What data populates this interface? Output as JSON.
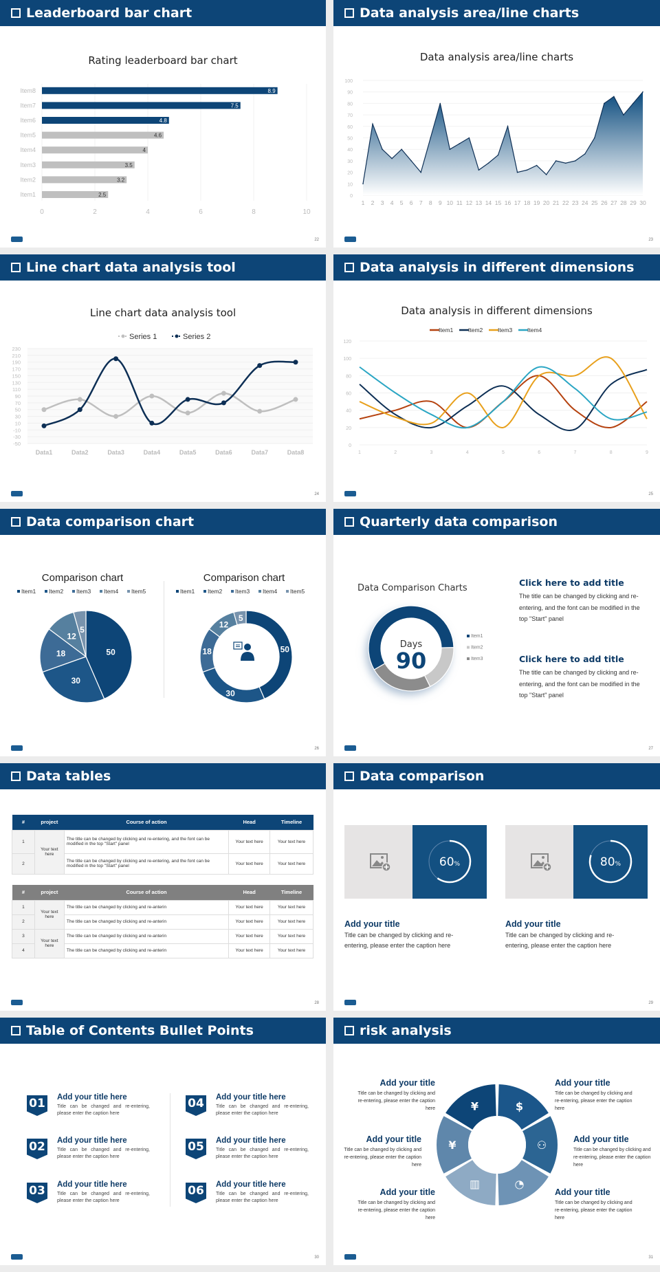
{
  "colors": {
    "header": "#0d4577",
    "dark_blue": "#0d4577",
    "gray_bar": "#bfbfbf"
  },
  "slides": {
    "s1": {
      "header": "Leaderboard bar chart",
      "page": "22"
    },
    "s2": {
      "header": "Data analysis area/line charts",
      "page": "23"
    },
    "s3": {
      "header": "Line chart data analysis tool",
      "page": "24"
    },
    "s4": {
      "header": "Data analysis in different dimensions",
      "page": "25"
    },
    "s5": {
      "header": "Data comparison chart",
      "page": "26"
    },
    "s6": {
      "header": "Quarterly data comparison",
      "page": "27",
      "blocks": [
        {
          "title": "Click here to add title",
          "text": "The title can be changed by clicking and re-entering, and the font can be modified in the top \"Start\" panel"
        },
        {
          "title": "Click here to add title",
          "text": "The title can be changed by clicking and re-entering, and the font can be modified in the top \"Start\" panel"
        }
      ]
    },
    "s7": {
      "header": "Data tables",
      "page": "28",
      "columns": [
        "#",
        "project",
        "Course of action",
        "Head",
        "Timeline"
      ],
      "table1": {
        "project": "Your text here",
        "rows": [
          {
            "num": "1",
            "course": "The title can be changed by clicking and re-entering, and the font can be modified in the top \"Start\" panel",
            "head": "Your text here",
            "timeline": "Your text here"
          },
          {
            "num": "2",
            "course": "The title can be changed by clicking and re-entering, and the font can be modified in the top \"Start\" panel",
            "head": "Your text here",
            "timeline": "Your text here"
          }
        ]
      },
      "table2": {
        "projects": [
          "Your text here",
          "Your text here"
        ],
        "rows": [
          {
            "num": "1",
            "course": "The title can be changed by clicking and re-anterin",
            "head": "Your text here",
            "timeline": "Your text here"
          },
          {
            "num": "2",
            "course": "The title can be changed by clicking and re-anterin",
            "head": "Your text here",
            "timeline": "Your text here"
          },
          {
            "num": "3",
            "course": "The title can be changed by clicking and re-anterin",
            "head": "Your text here",
            "timeline": "Your text here"
          },
          {
            "num": "4",
            "course": "The title can be changed by clicking and re-anterin",
            "head": "Your text here",
            "timeline": "Your text here"
          }
        ]
      }
    },
    "s8": {
      "header": "Data comparison",
      "page": "29",
      "cards": [
        {
          "percent": 60,
          "value": "60",
          "unit": "%",
          "title": "Add your title",
          "text": "Title can be changed by clicking and re-entering, please enter the caption here",
          "icon": "image-add-icon"
        },
        {
          "percent": 80,
          "value": "80",
          "unit": "%",
          "title": "Add your title",
          "text": "Title can be changed by clicking and re-entering, please enter the caption here",
          "icon": "image-add-icon"
        }
      ]
    },
    "s9": {
      "header": "Table of Contents Bullet Points",
      "page": "30",
      "items": [
        {
          "num": "01",
          "title": "Add your title here",
          "text": "Title can be changed and re-entering, please enter the caption here"
        },
        {
          "num": "02",
          "title": "Add your title here",
          "text": "Title can be changed and re-entering, please enter the caption here"
        },
        {
          "num": "03",
          "title": "Add your title here",
          "text": "Title can be changed and re-entering, please enter the caption here"
        },
        {
          "num": "04",
          "title": "Add your title here",
          "text": "Title can be changed and re-entering, please enter the caption here"
        },
        {
          "num": "05",
          "title": "Add your title here",
          "text": "Title can be changed and re-entering, please enter the caption here"
        },
        {
          "num": "06",
          "title": "Add your title here",
          "text": "Title can be changed and re-entering, please enter the caption here"
        }
      ]
    },
    "s10": {
      "header": "risk analysis",
      "page": "31",
      "items": [
        {
          "title": "Add your title",
          "text": "Title can be changed by clicking and re-entering, please enter the caption here",
          "icon": "money-bag-yen-icon"
        },
        {
          "title": "Add your title",
          "text": "Title can be changed by clicking and re-entering, please enter the caption here",
          "icon": "coins-dollar-icon"
        },
        {
          "title": "Add your title",
          "text": "Title can be changed by clicking and re-entering, please enter the caption here",
          "icon": "yen-hand-icon"
        },
        {
          "title": "Add your title",
          "text": "Title can be changed by clicking and re-entering, please enter the caption here",
          "icon": "users-icon"
        },
        {
          "title": "Add your title",
          "text": "Title can be changed by clicking and re-entering, please enter the caption here",
          "icon": "buildings-icon"
        },
        {
          "title": "Add your title",
          "text": "Title can be changed by clicking and re-entering, please enter the caption here",
          "icon": "pie-chart-icon"
        }
      ]
    }
  },
  "chart_data": [
    {
      "type": "bar",
      "orientation": "horizontal",
      "title": "Rating leaderboard bar chart",
      "categories": [
        "Item1",
        "Item2",
        "Item3",
        "Item4",
        "Item5",
        "Item6",
        "Item7",
        "Item8"
      ],
      "values": [
        2.5,
        3.2,
        3.5,
        4,
        4.6,
        4.8,
        7.5,
        8.9
      ],
      "highlight": [
        "Item6",
        "Item7",
        "Item8"
      ],
      "highlight_color": "#0d4577",
      "base_color": "#bfbfbf",
      "xlim": [
        0,
        10
      ],
      "xticks": [
        "0",
        "2",
        "4",
        "6",
        "8",
        "10"
      ],
      "grid": true
    },
    {
      "type": "area",
      "title": "Data analysis area/line charts",
      "x": [
        "1",
        "2",
        "3",
        "4",
        "5",
        "6",
        "7",
        "8",
        "9",
        "10",
        "11",
        "12",
        "13",
        "14",
        "15",
        "16",
        "17",
        "18",
        "19",
        "20",
        "21",
        "22",
        "23",
        "24",
        "25",
        "26",
        "27",
        "28",
        "29",
        "30"
      ],
      "values": [
        10,
        62,
        40,
        32,
        40,
        30,
        20,
        50,
        80,
        40,
        45,
        50,
        22,
        28,
        35,
        60,
        20,
        22,
        26,
        18,
        30,
        28,
        30,
        36,
        50,
        80,
        86,
        70,
        80,
        90
      ],
      "ylim": [
        0,
        100
      ],
      "yticks": [
        "0",
        "10",
        "20",
        "30",
        "40",
        "50",
        "60",
        "70",
        "80",
        "90",
        "100"
      ],
      "color": "#0d4577",
      "grid": true
    },
    {
      "type": "line",
      "smooth": true,
      "title": "Line chart data analysis tool",
      "categories": [
        "Data1",
        "Data2",
        "Data3",
        "Data4",
        "Data5",
        "Data6",
        "Data7",
        "Data8"
      ],
      "series": [
        {
          "name": "Series 1",
          "color": "#bfbfbf",
          "values": [
            50,
            80,
            30,
            90,
            40,
            98,
            45,
            80
          ]
        },
        {
          "name": "Series 2",
          "color": "#0d2f55",
          "values": [
            2,
            50,
            200,
            10,
            80,
            70,
            180,
            190
          ]
        }
      ],
      "ylim": [
        -50,
        230
      ],
      "yticks": [
        "-50",
        "-30",
        "-10",
        "10",
        "30",
        "50",
        "70",
        "90",
        "110",
        "130",
        "150",
        "170",
        "190",
        "210",
        "230"
      ],
      "legend": "top"
    },
    {
      "type": "line",
      "smooth": true,
      "title": "Data analysis in different dimensions",
      "x": [
        "1",
        "2",
        "3",
        "4",
        "5",
        "6",
        "7",
        "8",
        "9"
      ],
      "series": [
        {
          "name": "Item1",
          "color": "#b5420f",
          "values": [
            30,
            40,
            50,
            20,
            50,
            80,
            40,
            20,
            50
          ]
        },
        {
          "name": "Item2",
          "color": "#0d2f55",
          "values": [
            70,
            35,
            20,
            45,
            68,
            35,
            18,
            70,
            87
          ]
        },
        {
          "name": "Item3",
          "color": "#e8a01c",
          "values": [
            50,
            32,
            25,
            60,
            20,
            80,
            80,
            100,
            30
          ]
        },
        {
          "name": "Item4",
          "color": "#2ba6c4",
          "values": [
            90,
            60,
            35,
            20,
            50,
            90,
            65,
            30,
            38
          ]
        }
      ],
      "ylim": [
        0,
        120
      ],
      "yticks": [
        "0",
        "20",
        "40",
        "60",
        "80",
        "100",
        "120"
      ],
      "legend": "top"
    },
    {
      "type": "pie",
      "title": "Comparison chart",
      "categories": [
        "Item1",
        "Item2",
        "Item3",
        "Item4",
        "Item5"
      ],
      "values": [
        50,
        30,
        18,
        12,
        5
      ],
      "colors": [
        "#0d4577",
        "#1d5688",
        "#3d6b96",
        "#56809f",
        "#7893ad"
      ],
      "legend": "top"
    },
    {
      "type": "pie",
      "donut": true,
      "title": "Comparison chart",
      "categories": [
        "Item1",
        "Item2",
        "Item3",
        "Item4",
        "Item5"
      ],
      "values": [
        50,
        30,
        18,
        12,
        5
      ],
      "colors": [
        "#0d4577",
        "#1d5688",
        "#3d6b96",
        "#56809f",
        "#7893ad"
      ],
      "legend": "top",
      "center_icon": "presenter-icon"
    },
    {
      "type": "pie",
      "donut": true,
      "title": "Data Comparison Charts",
      "categories": [
        "Item1",
        "Item2",
        "Item3"
      ],
      "values": [
        58,
        18,
        24
      ],
      "colors": [
        "#0d4577",
        "#c8c8c8",
        "#8c8c8c"
      ],
      "legend": "right",
      "center_label": "Days",
      "center_value": "90"
    }
  ]
}
